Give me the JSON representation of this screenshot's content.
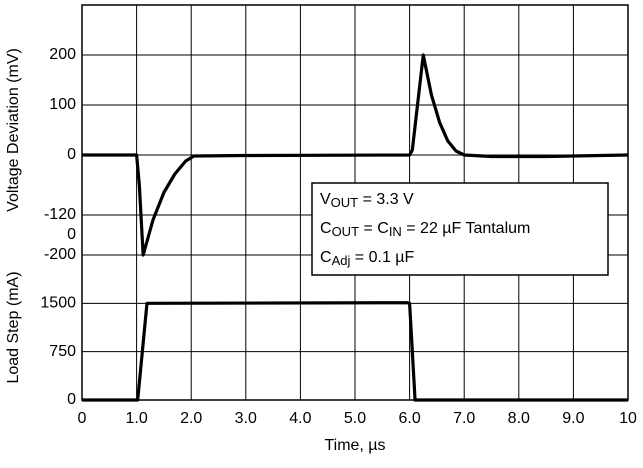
{
  "chart_data": [
    {
      "type": "line",
      "ylabel": "Voltage Deviation (mV)",
      "xlim": [
        0,
        10
      ],
      "ylim": [
        -200,
        300
      ],
      "yticks": [
        200,
        100,
        0,
        -120,
        -200
      ],
      "annotation_labels": [
        "0"
      ],
      "grid": true,
      "series": [
        {
          "color": "#000000",
          "x": [
            0,
            1.0,
            1.05,
            1.12,
            1.3,
            1.5,
            1.7,
            1.9,
            2.05,
            3,
            6.0,
            6.05,
            6.25,
            6.4,
            6.55,
            6.7,
            6.85,
            7.0,
            7.5,
            8.5,
            10
          ],
          "values": [
            0,
            0,
            -60,
            -200,
            -130,
            -75,
            -38,
            -12,
            -2,
            -1,
            0,
            10,
            200,
            120,
            65,
            28,
            8,
            0,
            -3,
            -3,
            0
          ]
        }
      ],
      "annotation": [
        [
          {
            "text": "V"
          },
          {
            "sub": "OUT"
          },
          {
            "text": " = 3.3 V"
          }
        ],
        [
          {
            "text": "C"
          },
          {
            "sub": "OUT"
          },
          {
            "text": " = C"
          },
          {
            "sub": "IN"
          },
          {
            "text": " = 22 µF Tantalum"
          }
        ],
        [
          {
            "text": "C"
          },
          {
            "sub": "Adj"
          },
          {
            "text": " = 0.1 µF"
          }
        ]
      ]
    },
    {
      "type": "line",
      "ylabel": "Load Step (mA)",
      "xlabel": "Time, µs",
      "xlim": [
        0,
        10
      ],
      "ylim": [
        0,
        2250
      ],
      "xticks": [
        0,
        {
          "value": 1,
          "label": "1.0"
        },
        {
          "value": 2,
          "label": "2.0"
        },
        {
          "value": 3,
          "label": "3.0"
        },
        {
          "value": 4,
          "label": "4.0"
        },
        {
          "value": 5,
          "label": "5.0"
        },
        {
          "value": 6,
          "label": "6.0"
        },
        {
          "value": 7,
          "label": "7.0"
        },
        {
          "value": 8,
          "label": "8.0"
        },
        {
          "value": 9,
          "label": "9.0"
        },
        10
      ],
      "yticks": [
        1500,
        750,
        0
      ],
      "grid": true,
      "series": [
        {
          "color": "#000000",
          "x": [
            0,
            1.02,
            1.19,
            5.95,
            6.0,
            6.1,
            10
          ],
          "values": [
            0,
            0,
            1500,
            1510,
            1500,
            0,
            0
          ]
        }
      ]
    }
  ]
}
